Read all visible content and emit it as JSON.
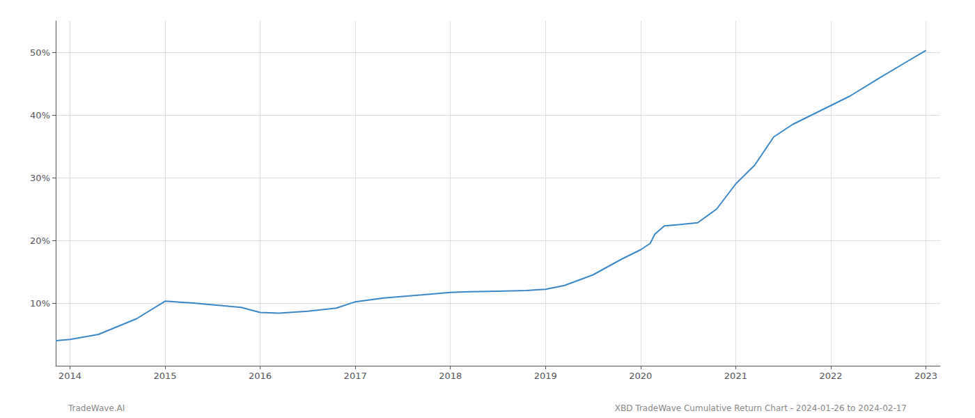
{
  "chart_data": {
    "type": "line",
    "x": [
      2013.85,
      2014.0,
      2014.3,
      2014.7,
      2015.0,
      2015.3,
      2015.8,
      2016.0,
      2016.2,
      2016.5,
      2016.8,
      2017.0,
      2017.3,
      2017.7,
      2018.0,
      2018.2,
      2018.5,
      2018.8,
      2019.0,
      2019.2,
      2019.5,
      2019.8,
      2020.0,
      2020.1,
      2020.15,
      2020.25,
      2020.4,
      2020.6,
      2020.8,
      2021.0,
      2021.2,
      2021.4,
      2021.6,
      2021.8,
      2022.0,
      2022.2,
      2022.5,
      2022.8,
      2023.0
    ],
    "values": [
      4.0,
      4.2,
      5.0,
      7.5,
      10.3,
      10.0,
      9.3,
      8.5,
      8.4,
      8.7,
      9.2,
      10.2,
      10.8,
      11.3,
      11.7,
      11.8,
      11.9,
      12.0,
      12.2,
      12.8,
      14.5,
      17.0,
      18.5,
      19.5,
      21.0,
      22.3,
      22.5,
      22.8,
      25.0,
      29.0,
      32.0,
      36.5,
      38.5,
      40.0,
      41.5,
      43.0,
      45.8,
      48.5,
      50.3
    ],
    "color": "#3a87c8",
    "xlim": [
      2013.85,
      2023.15
    ],
    "ylim": [
      0,
      55
    ],
    "xticks": [
      2014,
      2015,
      2016,
      2017,
      2018,
      2019,
      2020,
      2021,
      2022,
      2023
    ],
    "yticks": [
      {
        "value": 10,
        "label": "10%"
      },
      {
        "value": 20,
        "label": "20%"
      },
      {
        "value": 30,
        "label": "30%"
      },
      {
        "value": 40,
        "label": "40%"
      },
      {
        "value": 50,
        "label": "50%"
      }
    ],
    "grid": true,
    "annotations": [
      "TradeWave.AI",
      "XBD TradeWave Cumulative Return Chart - 2024-01-26 to 2024-02-17"
    ]
  }
}
